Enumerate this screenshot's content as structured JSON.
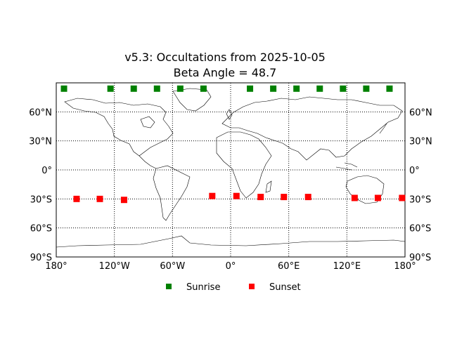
{
  "chart_data": {
    "type": "scatter",
    "title": "v5.3: Occultations from 2025-10-05",
    "subtitle": "Beta Angle = 48.7",
    "xlabel": "",
    "ylabel": "",
    "xlim": [
      -180,
      180
    ],
    "ylim": [
      -90,
      90
    ],
    "x_ticks": [
      -180,
      -120,
      -60,
      0,
      60,
      120,
      180
    ],
    "x_tick_labels": [
      "180°",
      "120°W",
      "60°W",
      "0°",
      "60°E",
      "120°E",
      "180°"
    ],
    "y_ticks": [
      -90,
      -60,
      -30,
      0,
      30,
      60
    ],
    "y_tick_labels": [
      "90°S",
      "60°S",
      "30°S",
      "0°",
      "30°N",
      "60°N"
    ],
    "grid": true,
    "legend_placement": "bottom-center",
    "basemap": "world coastlines",
    "series": [
      {
        "name": "Sunrise",
        "color": "#008000",
        "marker": "square",
        "points": [
          [
            -172,
            84
          ],
          [
            -124,
            84
          ],
          [
            -100,
            84
          ],
          [
            -76,
            84
          ],
          [
            -52,
            84
          ],
          [
            -28,
            84
          ],
          [
            20,
            84
          ],
          [
            44,
            84
          ],
          [
            68,
            84
          ],
          [
            92,
            84
          ],
          [
            116,
            84
          ],
          [
            140,
            84
          ],
          [
            164,
            84
          ]
        ]
      },
      {
        "name": "Sunset",
        "color": "#ff0000",
        "marker": "square",
        "points": [
          [
            -159,
            -30
          ],
          [
            -135,
            -30
          ],
          [
            -110,
            -31
          ],
          [
            -19,
            -27
          ],
          [
            6,
            -27
          ],
          [
            31,
            -28
          ],
          [
            55,
            -28
          ],
          [
            80,
            -28
          ],
          [
            128,
            -29
          ],
          [
            152,
            -29
          ],
          [
            177,
            -29
          ]
        ]
      }
    ]
  }
}
